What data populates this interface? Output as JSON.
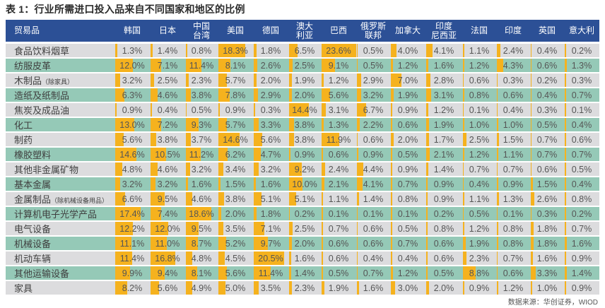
{
  "title": "表 1：行业所需进口投入品来自不同国家和地区的比例",
  "source": "数据来源：华创证券，WIOD",
  "colors": {
    "header": "#2c5096",
    "row_odd": "#dcdcde",
    "row_even": "#95c9b7",
    "bar": "#f5b21e"
  },
  "columns": {
    "product": "贸易品",
    "countries": [
      [
        "韩国"
      ],
      [
        "日本"
      ],
      [
        "中国",
        "台湾"
      ],
      [
        "美国"
      ],
      [
        "德国"
      ],
      [
        "澳大",
        "利亚"
      ],
      [
        "巴西"
      ],
      [
        "俄罗斯",
        "联邦"
      ],
      [
        "加拿大"
      ],
      [
        "印度",
        "尼西亚"
      ],
      [
        "法国"
      ],
      [
        "印度"
      ],
      [
        "英国"
      ],
      [
        "意大利"
      ]
    ]
  },
  "rows": [
    {
      "product": "食品饮料烟草",
      "note": "",
      "values": [
        1.3,
        1.4,
        0.8,
        18.3,
        1.8,
        6.5,
        23.6,
        0.5,
        4.0,
        4.1,
        1.1,
        2.4,
        0.4,
        0.2
      ]
    },
    {
      "product": "纺服皮革",
      "note": "",
      "values": [
        12.0,
        7.1,
        11.4,
        8.1,
        2.6,
        2.5,
        9.1,
        0.5,
        1.2,
        1.6,
        1.2,
        4.3,
        0.6,
        1.3
      ]
    },
    {
      "product": "木制品",
      "note": "（除家具）",
      "values": [
        3.2,
        2.5,
        2.3,
        5.7,
        2.0,
        1.9,
        1.2,
        2.9,
        7.0,
        2.8,
        0.6,
        0.3,
        0.2,
        0.3
      ]
    },
    {
      "product": "造纸及纸制品",
      "note": "",
      "values": [
        6.3,
        4.6,
        3.8,
        7.8,
        2.9,
        2.0,
        5.6,
        3.2,
        1.9,
        3.1,
        0.8,
        0.6,
        0.4,
        0.7
      ]
    },
    {
      "product": "焦炭及成品油",
      "note": "",
      "values": [
        0.9,
        0.4,
        0.5,
        0.9,
        0.3,
        14.4,
        3.1,
        6.7,
        0.9,
        1.2,
        0.1,
        0.4,
        0.3,
        0.1
      ]
    },
    {
      "product": "化工",
      "note": "",
      "values": [
        13.0,
        7.2,
        9.3,
        5.7,
        3.3,
        3.8,
        1.3,
        2.2,
        0.6,
        1.9,
        1.0,
        1.0,
        0.5,
        0.4
      ]
    },
    {
      "product": "制药",
      "note": "",
      "values": [
        5.6,
        3.8,
        3.7,
        14.6,
        5.6,
        3.8,
        11.9,
        0.6,
        2.0,
        1.7,
        2.5,
        1.5,
        0.7,
        0.6
      ]
    },
    {
      "product": "橡胶塑料",
      "note": "",
      "values": [
        14.6,
        10.5,
        11.2,
        6.2,
        4.7,
        0.9,
        0.6,
        0.9,
        0.5,
        2.1,
        1.2,
        1.1,
        0.7,
        0.7
      ]
    },
    {
      "product": "其他非金属矿物",
      "note": "",
      "values": [
        4.8,
        4.6,
        3.2,
        3.4,
        3.2,
        9.2,
        2.4,
        4.4,
        0.9,
        1.4,
        0.7,
        0.7,
        0.6,
        0.5
      ]
    },
    {
      "product": "基本金属",
      "note": "",
      "values": [
        3.2,
        3.2,
        1.6,
        1.5,
        1.6,
        10.0,
        2.1,
        4.1,
        0.7,
        0.9,
        0.4,
        0.9,
        1.5,
        0.4
      ]
    },
    {
      "product": "金属制品",
      "note": "（除机械设备用品）",
      "values": [
        6.6,
        9.5,
        4.6,
        3.8,
        5.1,
        5.1,
        1.1,
        1.4,
        0.8,
        0.9,
        1.1,
        1.3,
        2.6,
        0.8
      ]
    },
    {
      "product": "计算机电子光学产品",
      "note": "",
      "values": [
        17.4,
        7.4,
        18.6,
        2.0,
        1.8,
        0.2,
        0.1,
        0.1,
        0.1,
        0.2,
        0.5,
        0.1,
        0.3,
        0.2
      ]
    },
    {
      "product": "电气设备",
      "note": "",
      "values": [
        12.2,
        12.0,
        9.5,
        3.5,
        7.1,
        2.5,
        0.7,
        0.6,
        0.5,
        0.8,
        1.2,
        0.8,
        1.8,
        0.7
      ]
    },
    {
      "product": "机械设备",
      "note": "",
      "values": [
        11.1,
        11.0,
        8.7,
        5.2,
        9.7,
        2.0,
        0.6,
        0.6,
        0.7,
        0.6,
        1.9,
        0.8,
        1.8,
        1.6
      ]
    },
    {
      "product": "机动车辆",
      "note": "",
      "values": [
        11.4,
        16.8,
        4.8,
        4.5,
        20.5,
        1.6,
        0.6,
        0.4,
        0.4,
        0.6,
        2.3,
        0.7,
        1.6,
        0.9
      ]
    },
    {
      "product": "其他运输设备",
      "note": "",
      "values": [
        9.9,
        9.4,
        8.1,
        5.6,
        11.4,
        1.4,
        0.5,
        0.7,
        1.2,
        0.5,
        8.8,
        0.6,
        3.3,
        1.4
      ]
    },
    {
      "product": "家具",
      "note": "",
      "values": [
        8.2,
        5.6,
        4.9,
        5.0,
        3.5,
        2.3,
        1.9,
        1.6,
        3.0,
        2.0,
        0.9,
        1.2,
        1.0,
        0.9
      ]
    }
  ]
}
